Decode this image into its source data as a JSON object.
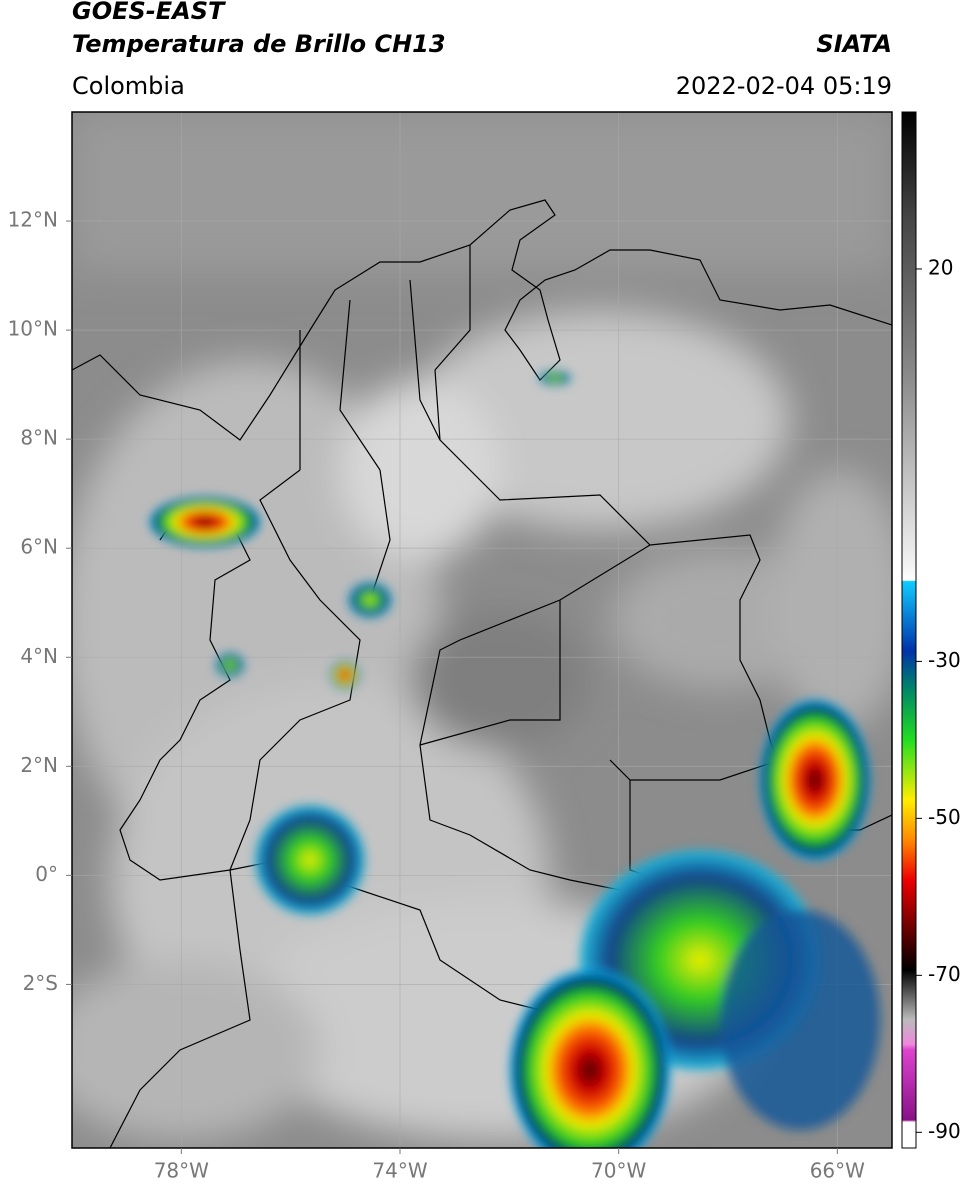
{
  "header": {
    "title": "GOES-EAST",
    "subtitle": "Temperatura de Brillo CH13",
    "source": "SIATA",
    "region": "Colombia",
    "datetime": "2022-02-04 05:19"
  },
  "map": {
    "xlim": [
      -80,
      -65
    ],
    "ylim": [
      -5,
      14
    ],
    "xticks": [
      {
        "value": -78,
        "label": "78°W"
      },
      {
        "value": -74,
        "label": "74°W"
      },
      {
        "value": -70,
        "label": "70°W"
      },
      {
        "value": -66,
        "label": "66°W"
      }
    ],
    "yticks": [
      {
        "value": 12,
        "label": "12°N"
      },
      {
        "value": 10,
        "label": "10°N"
      },
      {
        "value": 8,
        "label": "8°N"
      },
      {
        "value": 6,
        "label": "6°N"
      },
      {
        "value": 4,
        "label": "4°N"
      },
      {
        "value": 2,
        "label": "2°N"
      },
      {
        "value": 0,
        "label": "0°"
      },
      {
        "value": -2,
        "label": "2°S"
      }
    ]
  },
  "colorbar": {
    "lim": [
      -92,
      40
    ],
    "ticks": [
      20,
      -30,
      -50,
      -70,
      -90
    ]
  }
}
